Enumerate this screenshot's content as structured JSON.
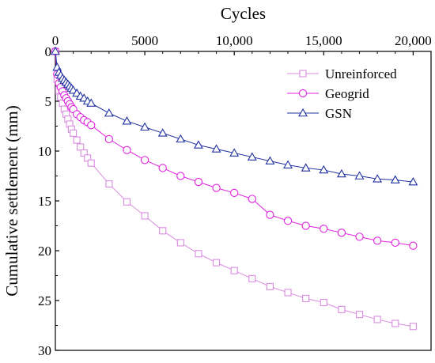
{
  "chart_data": {
    "type": "line",
    "xlabel": "Cycles",
    "ylabel": "Cumulative settlement (mm)",
    "x_axis_position": "top",
    "y_axis_inverted": true,
    "xlim": [
      0,
      21000
    ],
    "ylim": [
      0,
      30
    ],
    "xticks": [
      {
        "value": 0,
        "label": "0"
      },
      {
        "value": 5000,
        "label": "5000"
      },
      {
        "value": 10000,
        "label": "10,000"
      },
      {
        "value": 15000,
        "label": "15,000"
      },
      {
        "value": 20000,
        "label": "20,000"
      }
    ],
    "yticks": [
      {
        "value": 0,
        "label": "0"
      },
      {
        "value": 5,
        "label": "5"
      },
      {
        "value": 10,
        "label": "10"
      },
      {
        "value": 15,
        "label": "15"
      },
      {
        "value": 20,
        "label": "20"
      },
      {
        "value": 25,
        "label": "25"
      },
      {
        "value": 30,
        "label": "30"
      }
    ],
    "grid": false,
    "legend_position": "top-right",
    "series": [
      {
        "name": "Unreinforced",
        "marker": "square",
        "color": "#d98ce0",
        "points": [
          [
            0,
            0
          ],
          [
            100,
            2.8
          ],
          [
            200,
            3.9
          ],
          [
            300,
            4.6
          ],
          [
            400,
            5.2
          ],
          [
            500,
            5.8
          ],
          [
            600,
            6.3
          ],
          [
            700,
            6.8
          ],
          [
            800,
            7.3
          ],
          [
            900,
            7.8
          ],
          [
            1000,
            8.2
          ],
          [
            1200,
            8.9
          ],
          [
            1400,
            9.6
          ],
          [
            1600,
            10.2
          ],
          [
            1800,
            10.7
          ],
          [
            2000,
            11.2
          ],
          [
            3000,
            13.3
          ],
          [
            4000,
            15.1
          ],
          [
            5000,
            16.5
          ],
          [
            6000,
            18.0
          ],
          [
            7000,
            19.2
          ],
          [
            8000,
            20.3
          ],
          [
            9000,
            21.2
          ],
          [
            10000,
            22.0
          ],
          [
            11000,
            22.8
          ],
          [
            12000,
            23.6
          ],
          [
            13000,
            24.2
          ],
          [
            14000,
            24.8
          ],
          [
            15000,
            25.2
          ],
          [
            16000,
            25.9
          ],
          [
            17000,
            26.4
          ],
          [
            18000,
            26.9
          ],
          [
            19000,
            27.3
          ],
          [
            20000,
            27.6
          ]
        ]
      },
      {
        "name": "Geogrid",
        "marker": "circle",
        "color": "#e020e0",
        "points": [
          [
            0,
            0
          ],
          [
            100,
            2.3
          ],
          [
            200,
            3.2
          ],
          [
            300,
            3.6
          ],
          [
            400,
            4.0
          ],
          [
            500,
            4.4
          ],
          [
            600,
            4.7
          ],
          [
            700,
            5.0
          ],
          [
            800,
            5.3
          ],
          [
            900,
            5.6
          ],
          [
            1000,
            5.8
          ],
          [
            1200,
            6.3
          ],
          [
            1400,
            6.6
          ],
          [
            1600,
            6.9
          ],
          [
            1800,
            7.1
          ],
          [
            2000,
            7.4
          ],
          [
            3000,
            8.8
          ],
          [
            4000,
            9.9
          ],
          [
            5000,
            10.9
          ],
          [
            6000,
            11.7
          ],
          [
            7000,
            12.5
          ],
          [
            8000,
            13.1
          ],
          [
            9000,
            13.7
          ],
          [
            10000,
            14.2
          ],
          [
            11000,
            14.8
          ],
          [
            12000,
            16.4
          ],
          [
            13000,
            17.0
          ],
          [
            14000,
            17.5
          ],
          [
            15000,
            17.8
          ],
          [
            16000,
            18.2
          ],
          [
            17000,
            18.6
          ],
          [
            18000,
            19.0
          ],
          [
            19000,
            19.2
          ],
          [
            20000,
            19.5
          ]
        ]
      },
      {
        "name": "GSN",
        "marker": "triangle",
        "color": "#2030a0",
        "points": [
          [
            0,
            0
          ],
          [
            100,
            1.6
          ],
          [
            200,
            2.1
          ],
          [
            300,
            2.4
          ],
          [
            400,
            2.7
          ],
          [
            500,
            2.9
          ],
          [
            600,
            3.1
          ],
          [
            700,
            3.3
          ],
          [
            800,
            3.5
          ],
          [
            900,
            3.7
          ],
          [
            1000,
            3.9
          ],
          [
            1200,
            4.2
          ],
          [
            1400,
            4.5
          ],
          [
            1600,
            4.7
          ],
          [
            1800,
            5.0
          ],
          [
            2000,
            5.2
          ],
          [
            3000,
            6.2
          ],
          [
            4000,
            7.0
          ],
          [
            5000,
            7.6
          ],
          [
            6000,
            8.2
          ],
          [
            7000,
            8.8
          ],
          [
            8000,
            9.4
          ],
          [
            9000,
            9.8
          ],
          [
            10000,
            10.2
          ],
          [
            11000,
            10.6
          ],
          [
            12000,
            11.0
          ],
          [
            13000,
            11.4
          ],
          [
            14000,
            11.7
          ],
          [
            15000,
            11.9
          ],
          [
            16000,
            12.3
          ],
          [
            17000,
            12.5
          ],
          [
            18000,
            12.8
          ],
          [
            19000,
            12.9
          ],
          [
            20000,
            13.1
          ]
        ]
      }
    ]
  }
}
